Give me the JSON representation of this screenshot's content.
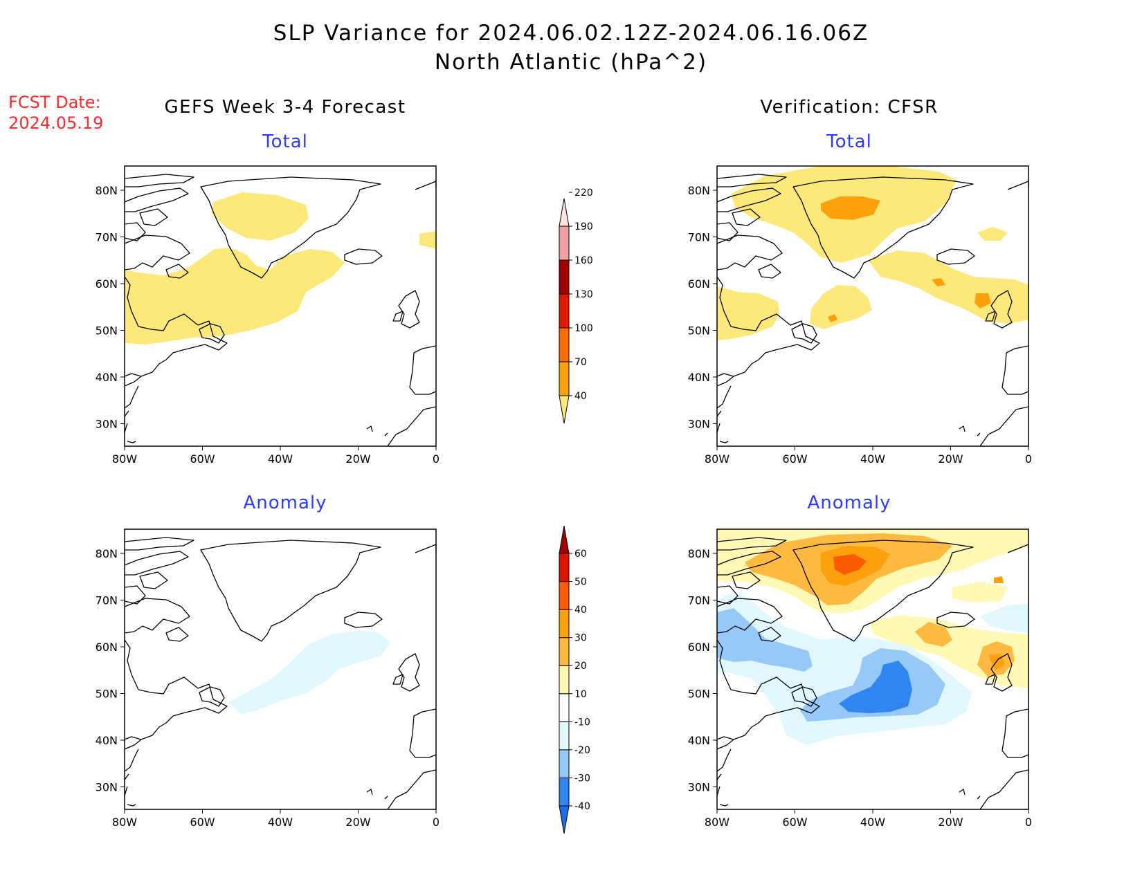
{
  "header": {
    "title_line1": "SLP Variance for 2024.06.02.12Z-2024.06.16.06Z",
    "title_line2": "North Atlantic (hPa^2)"
  },
  "fcst": {
    "label": "FCST Date:",
    "date": "2024.05.19"
  },
  "columns": {
    "left": "GEFS Week 3-4 Forecast",
    "right": "Verification: CFSR"
  },
  "panels": [
    {
      "id": "gefs-total",
      "title": "Total"
    },
    {
      "id": "cfsr-total",
      "title": "Total"
    },
    {
      "id": "gefs-anomaly",
      "title": "Anomaly"
    },
    {
      "id": "cfsr-anomaly",
      "title": "Anomaly"
    }
  ],
  "axes": {
    "lon_labels": [
      "80W",
      "60W",
      "40W",
      "20W",
      "0"
    ],
    "lat_labels": [
      "80N",
      "70N",
      "60N",
      "50N",
      "40N",
      "30N"
    ]
  },
  "colorbars": {
    "total": {
      "labels": [
        "40",
        "70",
        "100",
        "130",
        "160",
        "190",
        "220"
      ],
      "colors": [
        "#fde97a",
        "#fca00c",
        "#fd6d00",
        "#e21800",
        "#a00000",
        "#f0a0a0",
        "#fde4e2"
      ]
    },
    "anomaly": {
      "labels": [
        "-40",
        "-30",
        "-20",
        "-10",
        "10",
        "20",
        "30",
        "40",
        "50",
        "60"
      ],
      "colors": [
        "#1e6ee6",
        "#2e86ee",
        "#96c8f8",
        "#e2f8ff",
        "#ffffff",
        "#fff9b4",
        "#feba40",
        "#fda00c",
        "#fb5a00",
        "#dd1200",
        "#a20000"
      ]
    }
  },
  "colors": {
    "fcst": "#ff2a2a",
    "panel_title": "#2b3bff"
  }
}
